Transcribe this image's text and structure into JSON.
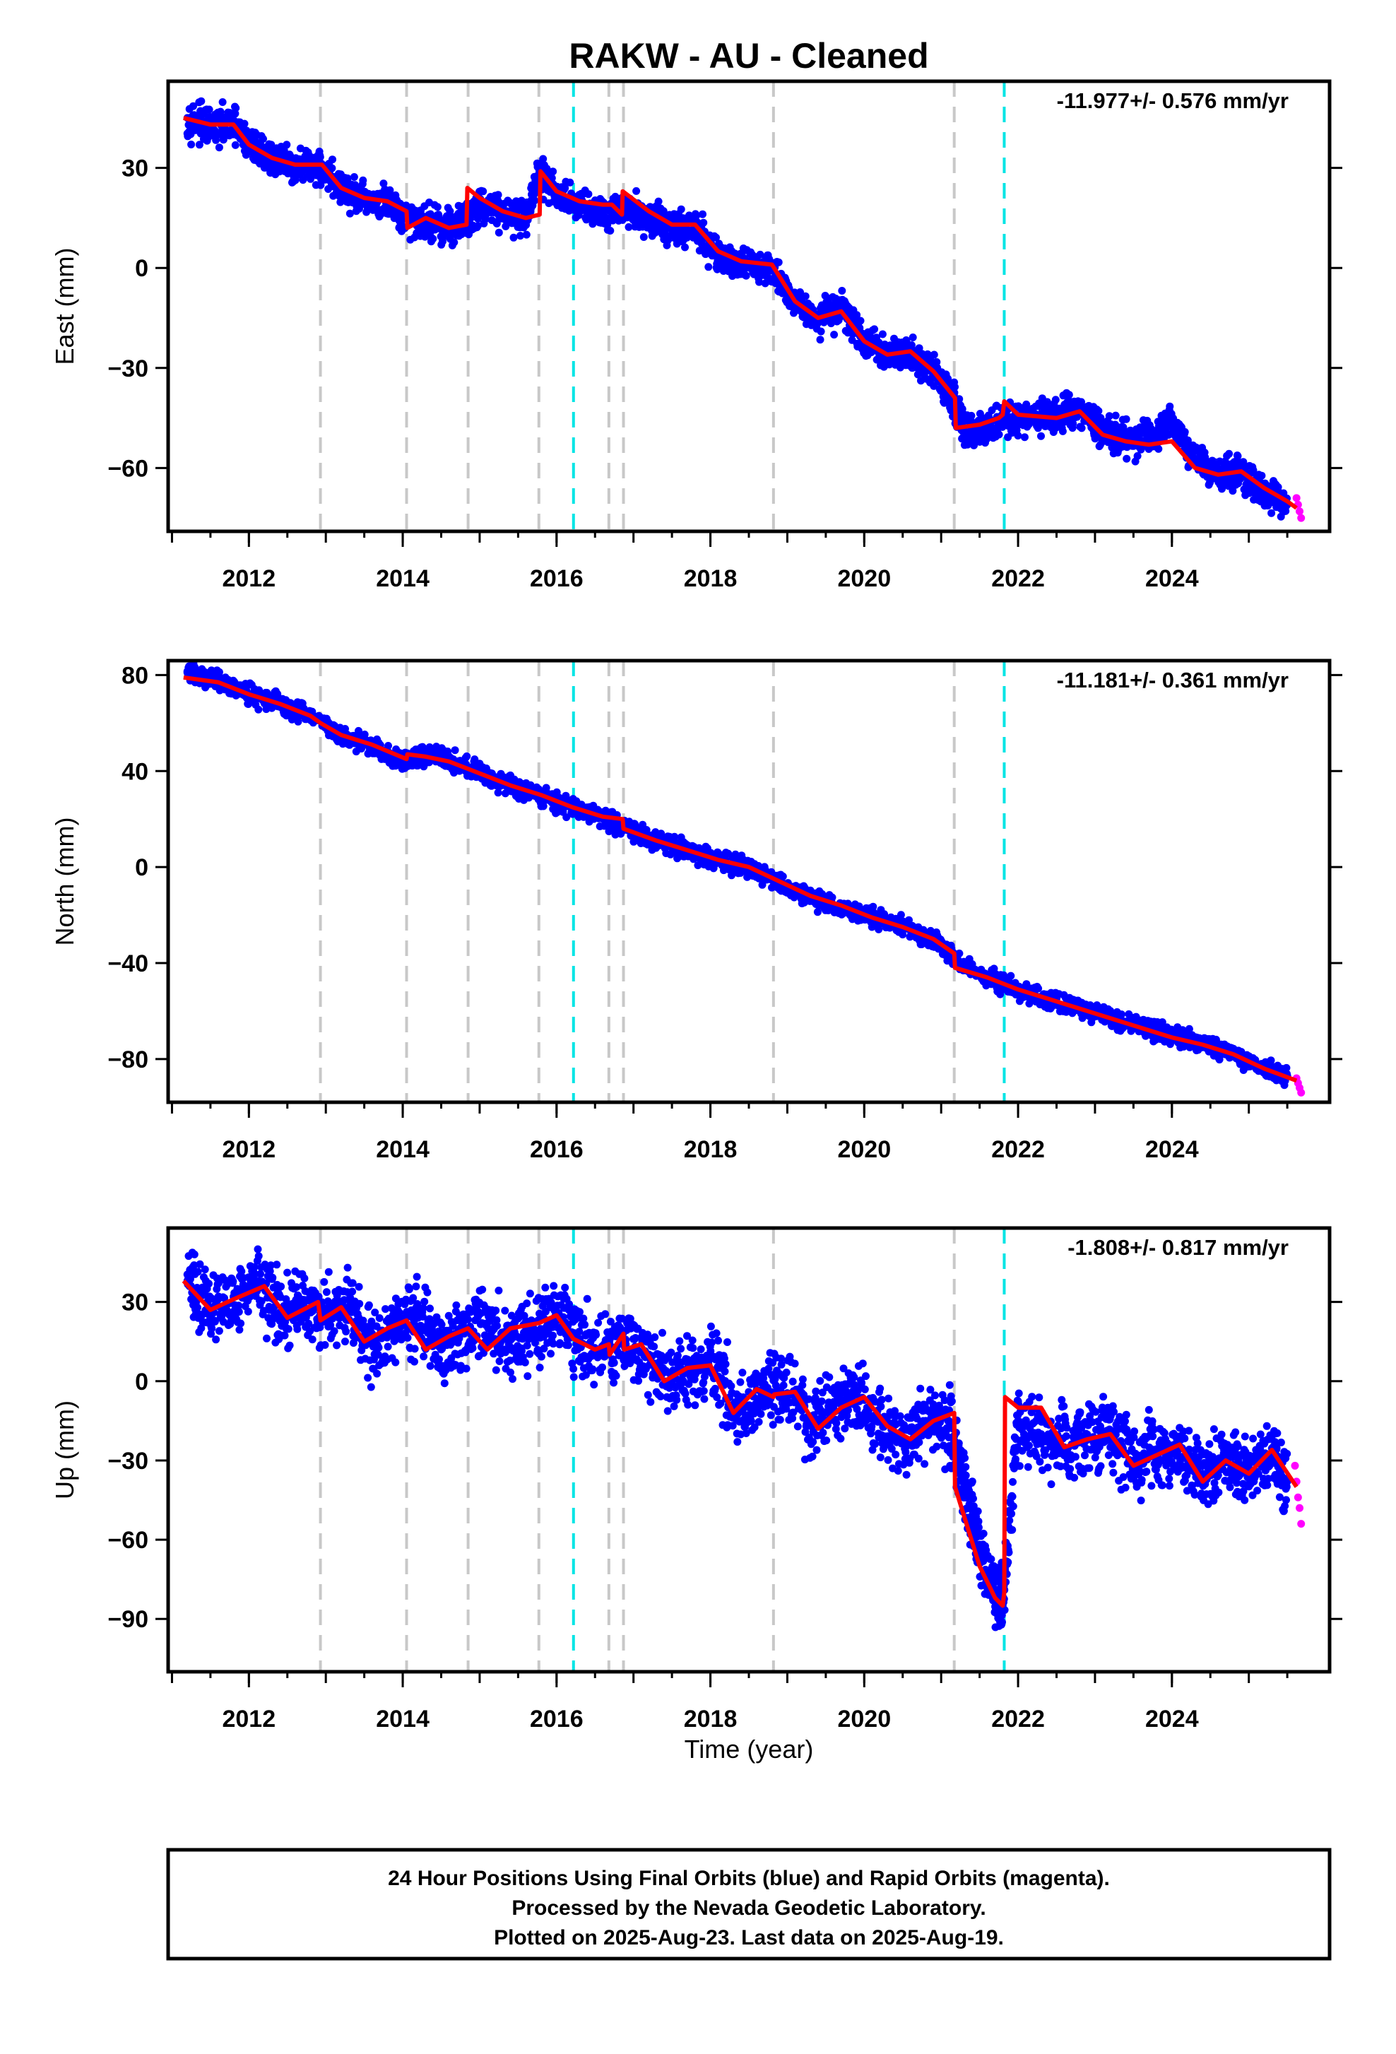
{
  "title": "RAKW  - AU - Cleaned",
  "colors": {
    "final_orbits": "#0000ff",
    "rapid_orbits": "#ff00ff",
    "model": "#ff0000",
    "equipment_change": "#c8c8c8",
    "earthquake": "#00e5e5"
  },
  "chart_data": [
    {
      "type": "scatter",
      "panel": "east",
      "ylabel": "East (mm)",
      "xlabel": "",
      "xlim": [
        2010.95,
        2026.05
      ],
      "ylim": [
        -79,
        56
      ],
      "x_ticks": [
        "2012",
        "2014",
        "2016",
        "2018",
        "2020",
        "2022",
        "2024"
      ],
      "y_ticks": [
        "30",
        "0",
        "−30",
        "−60"
      ],
      "y_tick_values": [
        30,
        0,
        -30,
        -60
      ],
      "rate_text": "-11.977+/- 0.576 mm/yr",
      "series": [
        {
          "kind": "final",
          "x": [
            2011.2,
            2011.5,
            2011.8,
            2012.0,
            2012.3,
            2012.6,
            2012.9,
            2013.2,
            2013.5,
            2013.8,
            2014.0,
            2014.3,
            2014.6,
            2014.85,
            2015.0,
            2015.3,
            2015.6,
            2015.78,
            2016.0,
            2016.3,
            2016.6,
            2016.9,
            2017.2,
            2017.5,
            2017.8,
            2018.1,
            2018.4,
            2018.8,
            2019.1,
            2019.4,
            2019.7,
            2020.0,
            2020.3,
            2020.6,
            2020.9,
            2021.15,
            2021.3,
            2021.6,
            2021.9,
            2022.2,
            2022.5,
            2022.8,
            2023.1,
            2023.4,
            2023.7,
            2024.0,
            2024.3,
            2024.6,
            2024.9,
            2025.2,
            2025.5
          ],
          "y": [
            45,
            42,
            43,
            37,
            33,
            30,
            31,
            24,
            20,
            19,
            15,
            14,
            12,
            15,
            19,
            17,
            15,
            29,
            22,
            19,
            17,
            18,
            15,
            12,
            12,
            4,
            1,
            0,
            -10,
            -15,
            -12,
            -22,
            -26,
            -26,
            -30,
            -40,
            -49,
            -48,
            -46,
            -45,
            -45,
            -42,
            -49,
            -51,
            -52,
            -46,
            -58,
            -61,
            -61,
            -67,
            -71
          ]
        },
        {
          "kind": "rapid",
          "x": [
            2025.62,
            2025.64,
            2025.66,
            2025.68
          ],
          "y": [
            -69,
            -71,
            -73,
            -75
          ]
        },
        {
          "kind": "model",
          "x": [
            2011.15,
            2011.5,
            2011.8,
            2012.0,
            2012.3,
            2012.6,
            2012.95,
            2013.2,
            2013.5,
            2013.8,
            2014.05,
            2014.06,
            2014.3,
            2014.6,
            2014.83,
            2014.84,
            2015.0,
            2015.3,
            2015.6,
            2015.78,
            2015.79,
            2016.0,
            2016.3,
            2016.6,
            2016.72,
            2016.85,
            2016.86,
            2017.2,
            2017.5,
            2017.8,
            2018.1,
            2018.4,
            2018.8,
            2019.1,
            2019.4,
            2019.7,
            2020.0,
            2020.3,
            2020.6,
            2020.9,
            2021.18,
            2021.19,
            2021.5,
            2021.75,
            2021.8,
            2021.82,
            2022.0,
            2022.5,
            2022.8,
            2023.1,
            2023.4,
            2023.7,
            2024.0,
            2024.3,
            2024.6,
            2024.9,
            2025.2,
            2025.5,
            2025.62
          ],
          "y": [
            45,
            43,
            43,
            37,
            33,
            31,
            31,
            24,
            21,
            20,
            17,
            12,
            15,
            12,
            13,
            24,
            21,
            17,
            15,
            16,
            29,
            23,
            20,
            19,
            19,
            16,
            23,
            17,
            13,
            13,
            5,
            2,
            1,
            -10,
            -15,
            -13,
            -22,
            -26,
            -25,
            -31,
            -39,
            -48,
            -47,
            -45,
            -44,
            -40,
            -44,
            -45,
            -43,
            -50,
            -52,
            -53,
            -52,
            -60,
            -62,
            -61,
            -66,
            -70,
            -72
          ]
        }
      ],
      "markers": {
        "equipment_change": [
          2012.93,
          2014.05,
          2014.85,
          2015.77,
          2016.68,
          2016.87,
          2018.82,
          2021.17
        ],
        "earthquake": [
          2016.22,
          2021.82
        ]
      }
    },
    {
      "type": "scatter",
      "panel": "north",
      "ylabel": "North (mm)",
      "xlabel": "",
      "xlim": [
        2010.95,
        2026.05
      ],
      "ylim": [
        -98,
        86
      ],
      "x_ticks": [
        "2012",
        "2014",
        "2016",
        "2018",
        "2020",
        "2022",
        "2024"
      ],
      "y_ticks": [
        "80",
        "40",
        "0",
        "−40",
        "−80"
      ],
      "y_tick_values": [
        80,
        40,
        0,
        -40,
        -80
      ],
      "rate_text": "-11.181+/- 0.361 mm/yr",
      "series": [
        {
          "kind": "final",
          "x": [
            2011.2,
            2011.6,
            2012.0,
            2012.4,
            2012.8,
            2013.2,
            2013.6,
            2014.0,
            2014.3,
            2014.6,
            2015.0,
            2015.4,
            2015.8,
            2016.2,
            2016.6,
            2016.9,
            2017.3,
            2017.7,
            2018.1,
            2018.5,
            2018.9,
            2019.3,
            2019.7,
            2020.1,
            2020.5,
            2020.9,
            2021.2,
            2021.6,
            2022.0,
            2022.4,
            2022.8,
            2023.2,
            2023.6,
            2024.0,
            2024.4,
            2024.8,
            2025.2,
            2025.5
          ],
          "y": [
            81,
            78,
            72,
            68,
            63,
            55,
            50,
            44,
            47,
            45,
            39,
            34,
            30,
            25,
            21,
            16,
            11,
            7,
            3,
            0,
            -7,
            -13,
            -17,
            -21,
            -25,
            -30,
            -39,
            -46,
            -51,
            -55,
            -59,
            -63,
            -66,
            -70,
            -73,
            -78,
            -84,
            -87
          ]
        },
        {
          "kind": "rapid",
          "x": [
            2025.62,
            2025.64,
            2025.66,
            2025.68
          ],
          "y": [
            -88,
            -90,
            -92,
            -94
          ]
        },
        {
          "kind": "model",
          "x": [
            2011.15,
            2011.6,
            2012.0,
            2012.4,
            2012.8,
            2012.93,
            2013.2,
            2013.6,
            2014.05,
            2014.06,
            2014.3,
            2014.6,
            2015.0,
            2015.4,
            2015.8,
            2016.2,
            2016.6,
            2016.86,
            2016.87,
            2017.3,
            2017.7,
            2018.1,
            2018.5,
            2018.9,
            2019.3,
            2019.7,
            2020.1,
            2020.5,
            2020.9,
            2021.17,
            2021.18,
            2021.6,
            2022.0,
            2022.4,
            2022.8,
            2023.2,
            2023.6,
            2024.0,
            2024.4,
            2024.8,
            2025.2,
            2025.62
          ],
          "y": [
            79,
            77,
            72,
            68,
            63,
            60,
            55,
            51,
            45,
            47,
            46,
            44,
            39,
            34,
            30,
            25,
            21,
            20,
            16,
            11,
            7,
            3,
            0,
            -6,
            -12,
            -16,
            -21,
            -25,
            -30,
            -36,
            -42,
            -46,
            -51,
            -55,
            -59,
            -63,
            -67,
            -71,
            -74,
            -78,
            -84,
            -89
          ]
        }
      ],
      "markers": {
        "equipment_change": [
          2012.93,
          2014.05,
          2014.85,
          2015.77,
          2016.68,
          2016.87,
          2018.82,
          2021.17
        ],
        "earthquake": [
          2016.22,
          2021.82
        ]
      }
    },
    {
      "type": "scatter",
      "panel": "up",
      "ylabel": "Up (mm)",
      "xlabel": "Time (year)",
      "xlim": [
        2010.95,
        2026.05
      ],
      "ylim": [
        -110,
        58
      ],
      "x_ticks": [
        "2012",
        "2014",
        "2016",
        "2018",
        "2020",
        "2022",
        "2024"
      ],
      "y_ticks": [
        "30",
        "0",
        "−30",
        "−60",
        "−90"
      ],
      "y_tick_values": [
        30,
        0,
        -30,
        -60,
        -90
      ],
      "rate_text": "-1.808+/- 0.817 mm/yr",
      "series": [
        {
          "kind": "final",
          "x": [
            2011.2,
            2011.5,
            2011.8,
            2012.1,
            2012.4,
            2012.7,
            2013.0,
            2013.3,
            2013.6,
            2013.9,
            2014.2,
            2014.5,
            2014.8,
            2015.1,
            2015.4,
            2015.7,
            2016.0,
            2016.3,
            2016.6,
            2016.9,
            2017.2,
            2017.5,
            2017.8,
            2018.1,
            2018.4,
            2018.7,
            2019.0,
            2019.3,
            2019.6,
            2019.9,
            2020.2,
            2020.5,
            2020.8,
            2021.1,
            2021.3,
            2021.5,
            2021.7,
            2021.8,
            2022.0,
            2022.3,
            2022.6,
            2022.9,
            2023.2,
            2023.5,
            2023.8,
            2024.1,
            2024.4,
            2024.7,
            2025.0,
            2025.3,
            2025.5
          ],
          "y": [
            38,
            28,
            32,
            38,
            26,
            30,
            25,
            28,
            15,
            20,
            24,
            12,
            18,
            22,
            12,
            20,
            25,
            16,
            12,
            14,
            10,
            0,
            5,
            5,
            -15,
            -2,
            -5,
            -15,
            -10,
            -5,
            -15,
            -22,
            -15,
            -15,
            -40,
            -65,
            -80,
            -85,
            -15,
            -20,
            -25,
            -22,
            -20,
            -30,
            -28,
            -25,
            -35,
            -30,
            -35,
            -28,
            -38
          ]
        },
        {
          "kind": "rapid",
          "x": [
            2025.6,
            2025.62,
            2025.64,
            2025.66,
            2025.68
          ],
          "y": [
            -32,
            -38,
            -44,
            -48,
            -54
          ]
        },
        {
          "kind": "model",
          "x": [
            2011.15,
            2011.5,
            2011.8,
            2012.2,
            2012.5,
            2012.9,
            2012.93,
            2013.2,
            2013.5,
            2013.8,
            2014.05,
            2014.3,
            2014.6,
            2014.85,
            2015.1,
            2015.4,
            2015.77,
            2016.0,
            2016.22,
            2016.5,
            2016.68,
            2016.69,
            2016.87,
            2016.88,
            2017.1,
            2017.4,
            2017.7,
            2018.0,
            2018.3,
            2018.6,
            2018.82,
            2018.83,
            2019.1,
            2019.4,
            2019.7,
            2020.0,
            2020.3,
            2020.6,
            2020.9,
            2021.17,
            2021.18,
            2021.5,
            2021.7,
            2021.8,
            2021.82,
            2021.83,
            2022.0,
            2022.3,
            2022.6,
            2022.9,
            2023.2,
            2023.5,
            2023.8,
            2024.1,
            2024.4,
            2024.7,
            2025.0,
            2025.3,
            2025.62
          ],
          "y": [
            38,
            27,
            31,
            36,
            24,
            30,
            23,
            28,
            15,
            20,
            23,
            12,
            17,
            20,
            12,
            20,
            22,
            25,
            16,
            12,
            14,
            10,
            18,
            12,
            14,
            0,
            5,
            6,
            -12,
            -3,
            -6,
            -5,
            -4,
            -18,
            -10,
            -6,
            -17,
            -22,
            -15,
            -12,
            -40,
            -70,
            -82,
            -85,
            -80,
            -6,
            -10,
            -10,
            -25,
            -22,
            -20,
            -32,
            -28,
            -24,
            -38,
            -30,
            -35,
            -26,
            -40
          ]
        }
      ],
      "markers": {
        "equipment_change": [
          2012.93,
          2014.05,
          2014.85,
          2015.77,
          2016.68,
          2016.87,
          2018.82,
          2021.17
        ],
        "earthquake": [
          2016.22,
          2021.82
        ]
      }
    }
  ],
  "caption": {
    "line1": "24 Hour Positions Using Final Orbits (blue) and Rapid Orbits (magenta).",
    "line2": "Processed by the Nevada Geodetic Laboratory.",
    "line3": "Plotted on 2025-Aug-23. Last data on 2025-Aug-19."
  }
}
